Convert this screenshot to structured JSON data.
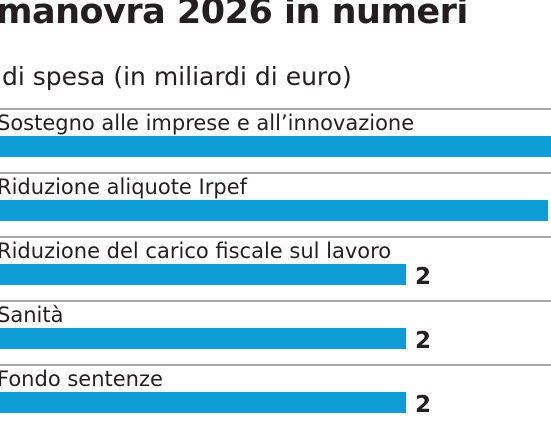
{
  "title": "manovra 2026 in numeri",
  "subtitle": "di spesa (in miliardi di euro)",
  "colors": {
    "bar": "#0d9ed8",
    "rule": "#8c8c8c",
    "text": "#231f20"
  },
  "chart_data": {
    "type": "bar",
    "orientation": "horizontal",
    "title": "manovra 2026 in numeri",
    "subtitle": "di spesa (in miliardi di euro)",
    "categories": [
      "Sostegno alle imprese e all’innovazione",
      "Riduzione aliquote Irpef",
      "Riduzione del carico fiscale sul lavoro",
      "Sanità",
      "Fondo sentenze"
    ],
    "values": [
      null,
      null,
      2,
      2,
      2
    ],
    "value_labels": [
      "",
      "",
      "2",
      "2",
      "2"
    ],
    "estimated_values": [
      2.8,
      2.7,
      2,
      2,
      2
    ],
    "xlim": [
      0,
      2
    ],
    "grid": false,
    "legend": "none"
  }
}
